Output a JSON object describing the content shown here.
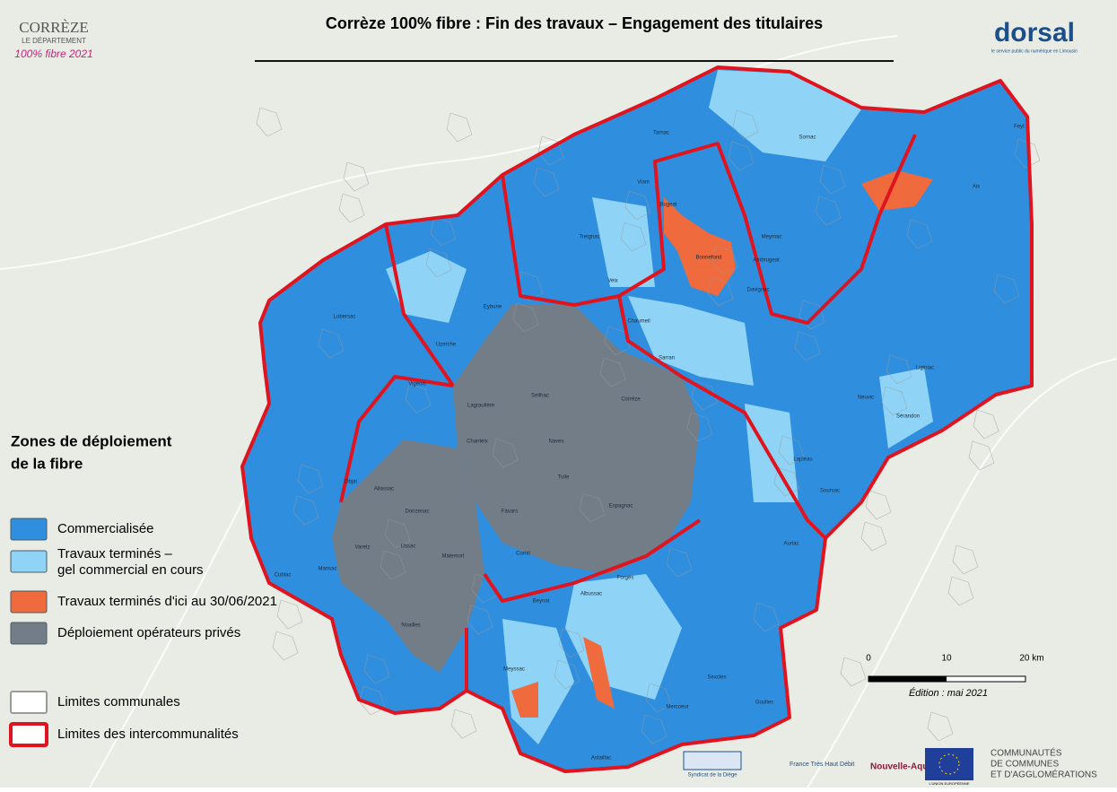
{
  "header": {
    "title": "Corrèze 100% fibre : Fin des travaux – Engagement des titulaires",
    "logo_left": [
      "CORRÈZE",
      "LE DÉPARTEMENT",
      "100% fibre 2021"
    ],
    "logo_right": "dorsal",
    "logo_right_tagline": "le service public du numérique en Limousin"
  },
  "legend": {
    "title": [
      "Zones de déploiement",
      "de la fibre"
    ],
    "items": [
      {
        "label": [
          "Commercialisée"
        ],
        "color": "#2f8fde"
      },
      {
        "label": [
          "Travaux terminés –",
          "gel commercial en cours"
        ],
        "color": "#8fd4f6"
      },
      {
        "label": [
          "Travaux terminés d'ici au 30/06/2021"
        ],
        "color": "#ef6a3c"
      },
      {
        "label": [
          "Déploiement opérateurs privés"
        ],
        "color": "#737d87"
      },
      {
        "label": [
          "Limites communales"
        ],
        "border": "#9a9a9a"
      },
      {
        "label": [
          "Limites des intercommunalités"
        ],
        "border": "#e0141e"
      }
    ]
  },
  "scale": {
    "labels": [
      "0",
      "10",
      "20 km"
    ],
    "edition": "Édition : mai 2021"
  },
  "partners": [
    "Syndicat de la Diège",
    "France Très Haut Débit",
    "Nouvelle-Aquitaine",
    "L'UNION EUROPÉENNE",
    "COMMUNAUTÉS",
    "DE COMMUNES",
    "ET D'AGGLOMÉRATIONS"
  ],
  "communes": [
    "Tulle",
    "Naves",
    "Seilhac",
    "Corrèze",
    "Chanteix",
    "Favars",
    "Cornil",
    "Espagnac",
    "Lagraulière",
    "Meymac",
    "Bugeat",
    "Sornac",
    "Tarnac",
    "Viam",
    "Treignac",
    "Veix",
    "Chaumeil",
    "Sarran",
    "Davignac",
    "Lapleau",
    "Neuvic",
    "Sérandon",
    "Soursac",
    "Lubersac",
    "Uzerche",
    "Vigeois",
    "Objat",
    "Allassac",
    "Donzenac",
    "Varetz",
    "Ussac",
    "Malemort",
    "Cublac",
    "Mansac",
    "Beynat",
    "Forgès",
    "Albussac",
    "Meyssac",
    "Eyburie",
    "Ambrugeat",
    "Bonnefond",
    "Liginiac",
    "Aix",
    "Feyt",
    "Auriac",
    "Goulles",
    "Sexcles",
    "Mercoeur",
    "Astaillac",
    "Noailles"
  ]
}
